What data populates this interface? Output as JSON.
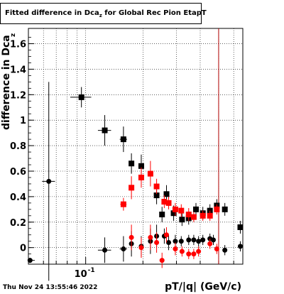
{
  "title": {
    "main": "Fitted difference in Dca",
    "sub": "z",
    "rest": " for Global Rec Pion EtapT"
  },
  "timestamp": "Thu Nov 24 13:55:46 2022",
  "chart_data": {
    "type": "scatter",
    "xlabel": "pT/|q| (GeV/c)",
    "ylabel_main": "difference in Dca",
    "ylabel_sub": "z",
    "x_scale": "log",
    "xlim": [
      0.05,
      0.67
    ],
    "ylim": [
      -0.13,
      1.72
    ],
    "y_ticks": [
      0,
      0.2,
      0.4,
      0.6,
      0.8,
      1,
      1.2,
      1.4,
      1.6
    ],
    "y_tick_labels": [
      "0",
      "0.2",
      "0.4",
      "0.6",
      "0.8",
      "1",
      "1.2",
      "1.4",
      "1.6"
    ],
    "x_tick_label": "10",
    "x_tick_label_exp": "-1",
    "grid": true,
    "vertical_line_x": 0.5,
    "colors": {
      "black": "#000000",
      "red": "#ff0000",
      "line": "#b00000"
    },
    "series": [
      {
        "marker": "square",
        "color": "#000000",
        "points": [
          [
            0.095,
            1.18,
            0.012,
            0.08
          ],
          [
            0.126,
            0.92,
            0.01,
            0.12
          ],
          [
            0.158,
            0.85,
            0.007,
            0.1
          ],
          [
            0.174,
            0.66,
            0.004,
            0.08
          ],
          [
            0.196,
            0.64,
            0.004,
            0.09
          ],
          [
            0.236,
            0.41,
            0.003,
            0.07
          ],
          [
            0.252,
            0.26,
            0.002,
            0.06
          ],
          [
            0.266,
            0.42,
            0.002,
            0.07
          ],
          [
            0.29,
            0.27,
            0.002,
            0.06
          ],
          [
            0.321,
            0.22,
            0.002,
            0.05
          ],
          [
            0.348,
            0.23,
            0.002,
            0.05
          ],
          [
            0.38,
            0.3,
            0.002,
            0.05
          ],
          [
            0.413,
            0.27,
            0.002,
            0.05
          ],
          [
            0.45,
            0.29,
            0.002,
            0.05
          ],
          [
            0.489,
            0.33,
            0.002,
            0.05
          ],
          [
            0.539,
            0.3,
            0.003,
            0.05
          ],
          [
            0.65,
            0.16,
            0.006,
            0.05
          ]
        ]
      },
      {
        "marker": "square",
        "color": "#ff0000",
        "points": [
          [
            0.158,
            0.34,
            0.006,
            0.05
          ],
          [
            0.174,
            0.47,
            0.004,
            0.09
          ],
          [
            0.196,
            0.55,
            0.004,
            0.08
          ],
          [
            0.219,
            0.58,
            0.004,
            0.1
          ],
          [
            0.236,
            0.48,
            0.003,
            0.06
          ],
          [
            0.259,
            0.36,
            0.003,
            0.05
          ],
          [
            0.273,
            0.35,
            0.002,
            0.05
          ],
          [
            0.296,
            0.3,
            0.002,
            0.05
          ],
          [
            0.318,
            0.29,
            0.002,
            0.05
          ],
          [
            0.348,
            0.26,
            0.002,
            0.05
          ],
          [
            0.37,
            0.24,
            0.002,
            0.04
          ],
          [
            0.413,
            0.25,
            0.002,
            0.04
          ],
          [
            0.45,
            0.25,
            0.002,
            0.04
          ],
          [
            0.489,
            0.3,
            0.002,
            0.04
          ]
        ]
      },
      {
        "marker": "circle",
        "color": "#000000",
        "points": [
          [
            0.051,
            -0.1,
            0.003,
            0.02
          ],
          [
            0.064,
            0.52,
            0.005,
            0.78
          ],
          [
            0.126,
            -0.02,
            0.01,
            0.1
          ],
          [
            0.158,
            -0.01,
            0.007,
            0.1
          ],
          [
            0.174,
            0.03,
            0.004,
            0.1
          ],
          [
            0.196,
            0.01,
            0.004,
            0.08
          ],
          [
            0.219,
            0.05,
            0.004,
            0.1
          ],
          [
            0.236,
            0.09,
            0.003,
            0.09
          ],
          [
            0.259,
            0.09,
            0.003,
            0.06
          ],
          [
            0.273,
            0.04,
            0.002,
            0.06
          ],
          [
            0.296,
            0.05,
            0.002,
            0.05
          ],
          [
            0.318,
            0.05,
            0.002,
            0.04
          ],
          [
            0.348,
            0.06,
            0.002,
            0.04
          ],
          [
            0.37,
            0.06,
            0.002,
            0.04
          ],
          [
            0.392,
            0.05,
            0.002,
            0.04
          ],
          [
            0.413,
            0.06,
            0.002,
            0.04
          ],
          [
            0.45,
            0.07,
            0.002,
            0.04
          ],
          [
            0.469,
            0.06,
            0.002,
            0.04
          ],
          [
            0.539,
            -0.02,
            0.003,
            0.04
          ],
          [
            0.65,
            0.01,
            0.006,
            0.04
          ]
        ]
      },
      {
        "marker": "circle",
        "color": "#ff0000",
        "points": [
          [
            0.174,
            0.08,
            0.004,
            0.1
          ],
          [
            0.196,
            0.0,
            0.004,
            0.08
          ],
          [
            0.219,
            0.08,
            0.004,
            0.1
          ],
          [
            0.236,
            0.04,
            0.003,
            0.08
          ],
          [
            0.252,
            -0.1,
            0.003,
            0.06
          ],
          [
            0.266,
            0.1,
            0.002,
            0.06
          ],
          [
            0.296,
            -0.01,
            0.002,
            0.05
          ],
          [
            0.321,
            -0.03,
            0.002,
            0.04
          ],
          [
            0.348,
            -0.05,
            0.002,
            0.04
          ],
          [
            0.37,
            -0.05,
            0.002,
            0.04
          ],
          [
            0.392,
            -0.03,
            0.002,
            0.04
          ],
          [
            0.45,
            0.03,
            0.002,
            0.04
          ],
          [
            0.489,
            -0.01,
            0.002,
            0.04
          ]
        ]
      }
    ]
  }
}
